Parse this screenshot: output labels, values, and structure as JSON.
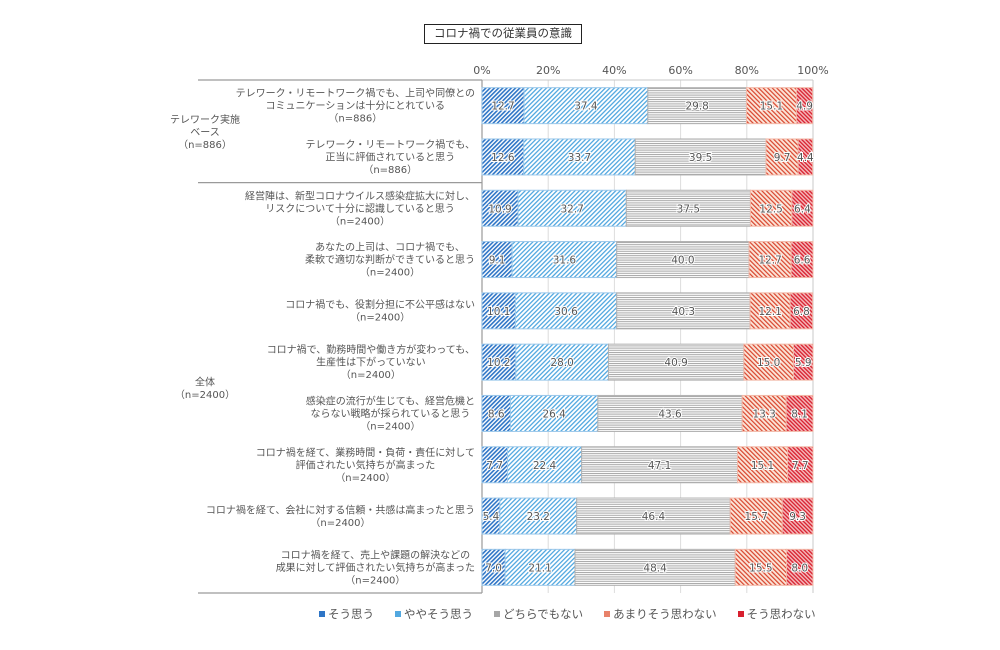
{
  "chart_data": {
    "type": "bar",
    "orientation": "horizontal-stacked-100",
    "title": "コロナ禍での従業員の意識",
    "xlabel": "",
    "ylabel": "",
    "xlim": [
      0,
      100
    ],
    "x_ticks": [
      "0%",
      "20%",
      "40%",
      "60%",
      "80%",
      "100%"
    ],
    "grid": true,
    "legend_position": "bottom",
    "groups": [
      {
        "label_lines": [
          "テレワーク実施",
          "ベース",
          "（n=886）"
        ],
        "rows": [
          0,
          1
        ]
      },
      {
        "label_lines": [
          "全体",
          "（n=2400）"
        ],
        "rows": [
          2,
          3,
          4,
          5,
          6,
          7,
          8,
          9
        ]
      }
    ],
    "categories": [
      {
        "lines": [
          "テレワーク・リモートワーク禍でも、上司や同僚との",
          "コミュニケーションは十分にとれている",
          "（n=886）"
        ]
      },
      {
        "lines": [
          "テレワーク・リモートワーク禍でも、",
          "正当に評価されていると思う",
          "（n=886）"
        ]
      },
      {
        "lines": [
          "経営陣は、新型コロナウイルス感染症拡大に対し、",
          "リスクについて十分に認識していると思う",
          "（n=2400）"
        ]
      },
      {
        "lines": [
          "あなたの上司は、コロナ禍でも、",
          "柔軟で適切な判断ができていると思う",
          "（n=2400）"
        ]
      },
      {
        "lines": [
          "コロナ禍でも、役割分担に不公平感はない",
          "（n=2400）"
        ]
      },
      {
        "lines": [
          "コロナ禍で、勤務時間や働き方が変わっても、",
          "生産性は下がっていない",
          "（n=2400）"
        ]
      },
      {
        "lines": [
          "感染症の流行が生じても、経営危機と",
          "ならない戦略が採られていると思う",
          "（n=2400）"
        ]
      },
      {
        "lines": [
          "コロナ禍を経て、業務時間・負荷・責任に対して",
          "評価されたい気持ちが高まった",
          "（n=2400）"
        ]
      },
      {
        "lines": [
          "コロナ禍を経て、会社に対する信頼・共感は高まったと思う",
          "（n=2400）"
        ]
      },
      {
        "lines": [
          "コロナ禍を経て、売上や課題の解決などの",
          "成果に対して評価されたい気持ちが高まった",
          "（n=2400）"
        ]
      }
    ],
    "series": [
      {
        "name": "そう思う",
        "color": "#2e75c6",
        "values": [
          12.7,
          12.6,
          10.9,
          9.1,
          10.1,
          10.2,
          8.6,
          7.7,
          5.4,
          7.0
        ]
      },
      {
        "name": "ややそう思う",
        "color": "#52a8e0",
        "values": [
          37.4,
          33.7,
          32.7,
          31.6,
          30.6,
          28.0,
          26.4,
          22.4,
          23.2,
          21.1
        ]
      },
      {
        "name": "どちらでもない",
        "color": "#a6a6a6",
        "values": [
          29.8,
          39.5,
          37.5,
          40.0,
          40.3,
          40.9,
          43.6,
          47.1,
          46.4,
          48.4
        ]
      },
      {
        "name": "あまりそう思わない",
        "color": "#e8826a",
        "values": [
          15.1,
          9.7,
          12.5,
          12.7,
          12.1,
          15.0,
          13.3,
          15.1,
          15.7,
          15.5
        ]
      },
      {
        "name": "そう思わない",
        "color": "#d8202f",
        "values": [
          4.9,
          4.4,
          6.4,
          6.6,
          6.8,
          5.9,
          8.1,
          7.7,
          9.3,
          8.0
        ]
      }
    ]
  }
}
